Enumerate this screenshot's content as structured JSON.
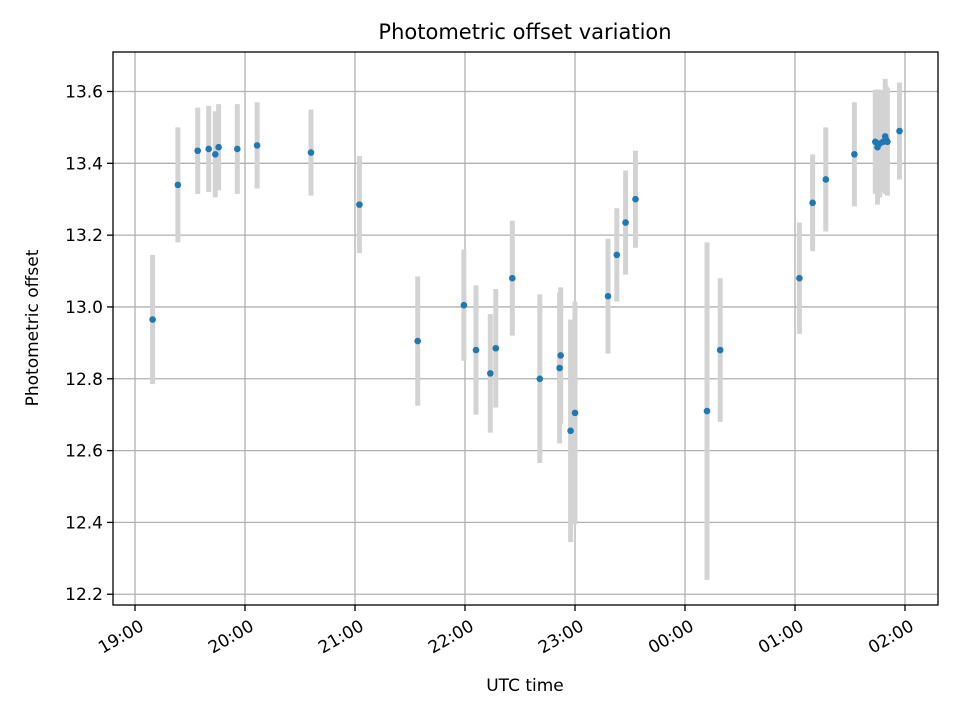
{
  "chart_data": {
    "type": "scatter",
    "title": "Photometric offset variation",
    "xlabel": "UTC time",
    "ylabel": "Photometric offset",
    "x_axis": {
      "unit": "hours after 19:00 UTC",
      "range": [
        -0.2,
        7.3
      ],
      "ticks": [
        0,
        1,
        2,
        3,
        4,
        5,
        6,
        7
      ],
      "tick_labels": [
        "19:00",
        "20:00",
        "21:00",
        "22:00",
        "23:00",
        "00:00",
        "01:00",
        "02:00"
      ]
    },
    "y_axis": {
      "range": [
        12.17,
        13.71
      ],
      "ticks": [
        12.2,
        12.4,
        12.6,
        12.8,
        13.0,
        13.2,
        13.4,
        13.6
      ],
      "tick_labels": [
        "12.2",
        "12.4",
        "12.6",
        "12.8",
        "13.0",
        "13.2",
        "13.4",
        "13.6"
      ]
    },
    "grid": true,
    "marker_color": "#1f77b4",
    "errorbar_color": "#d3d3d3",
    "series": [
      {
        "points": [
          {
            "x": 0.16,
            "y": 12.965,
            "err": 0.18
          },
          {
            "x": 0.39,
            "y": 13.34,
            "err": 0.16
          },
          {
            "x": 0.57,
            "y": 13.435,
            "err": 0.12
          },
          {
            "x": 0.67,
            "y": 13.44,
            "err": 0.12
          },
          {
            "x": 0.73,
            "y": 13.425,
            "err": 0.12
          },
          {
            "x": 0.76,
            "y": 13.445,
            "err": 0.12
          },
          {
            "x": 0.93,
            "y": 13.44,
            "err": 0.125
          },
          {
            "x": 1.11,
            "y": 13.45,
            "err": 0.12
          },
          {
            "x": 1.6,
            "y": 13.43,
            "err": 0.12
          },
          {
            "x": 2.04,
            "y": 13.285,
            "err": 0.135
          },
          {
            "x": 2.57,
            "y": 12.905,
            "err": 0.18
          },
          {
            "x": 2.99,
            "y": 13.005,
            "err": 0.155
          },
          {
            "x": 3.1,
            "y": 12.88,
            "err": 0.18
          },
          {
            "x": 3.23,
            "y": 12.815,
            "err": 0.165
          },
          {
            "x": 3.28,
            "y": 12.885,
            "err": 0.165
          },
          {
            "x": 3.43,
            "y": 13.08,
            "err": 0.16
          },
          {
            "x": 3.68,
            "y": 12.8,
            "err": 0.235
          },
          {
            "x": 3.86,
            "y": 12.83,
            "err": 0.21
          },
          {
            "x": 3.87,
            "y": 12.865,
            "err": 0.19
          },
          {
            "x": 3.96,
            "y": 12.655,
            "err": 0.31
          },
          {
            "x": 4.0,
            "y": 12.705,
            "err": 0.31
          },
          {
            "x": 4.3,
            "y": 13.03,
            "err": 0.16
          },
          {
            "x": 4.38,
            "y": 13.145,
            "err": 0.13
          },
          {
            "x": 4.46,
            "y": 13.235,
            "err": 0.145
          },
          {
            "x": 4.55,
            "y": 13.3,
            "err": 0.135
          },
          {
            "x": 5.2,
            "y": 12.71,
            "err": 0.47
          },
          {
            "x": 5.32,
            "y": 12.88,
            "err": 0.2
          },
          {
            "x": 6.04,
            "y": 13.08,
            "err": 0.155
          },
          {
            "x": 6.16,
            "y": 13.29,
            "err": 0.135
          },
          {
            "x": 6.28,
            "y": 13.355,
            "err": 0.145
          },
          {
            "x": 6.54,
            "y": 13.425,
            "err": 0.145
          },
          {
            "x": 6.73,
            "y": 13.46,
            "err": 0.145
          },
          {
            "x": 6.75,
            "y": 13.445,
            "err": 0.16
          },
          {
            "x": 6.77,
            "y": 13.455,
            "err": 0.15
          },
          {
            "x": 6.8,
            "y": 13.46,
            "err": 0.14
          },
          {
            "x": 6.82,
            "y": 13.475,
            "err": 0.16
          },
          {
            "x": 6.83,
            "y": 13.465,
            "err": 0.15
          },
          {
            "x": 6.84,
            "y": 13.46,
            "err": 0.15
          },
          {
            "x": 6.95,
            "y": 13.49,
            "err": 0.135
          }
        ]
      }
    ]
  }
}
